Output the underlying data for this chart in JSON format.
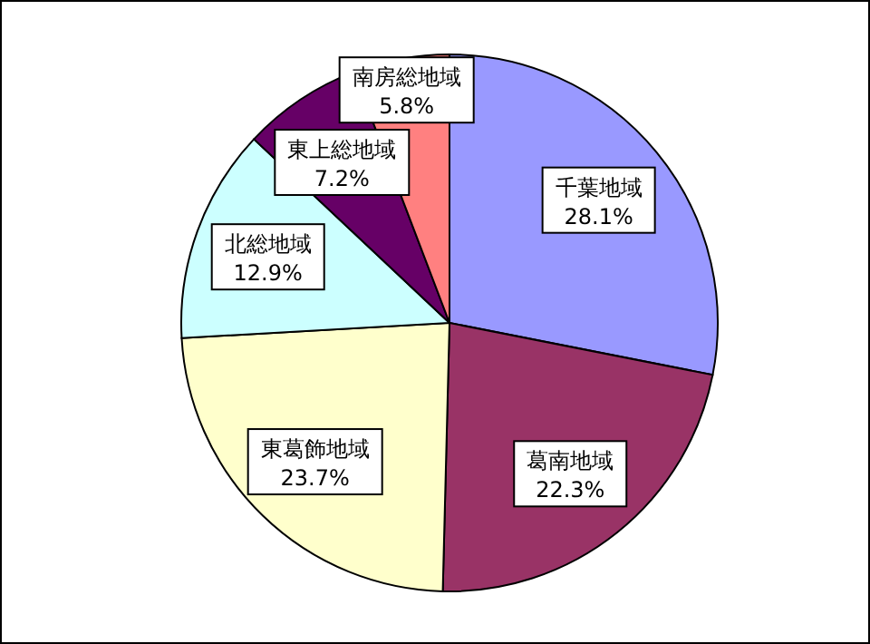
{
  "chart_data": {
    "type": "pie",
    "categories": [
      "千葉地域",
      "葛南地域",
      "東葛飾地域",
      "北総地域",
      "東上総地域",
      "南房総地域"
    ],
    "values": [
      28.1,
      22.3,
      23.7,
      12.9,
      7.2,
      5.8
    ],
    "colors": [
      "#9999ff",
      "#993366",
      "#ffffcc",
      "#ccffff",
      "#660066",
      "#ff8080"
    ],
    "value_labels": [
      "28.1%",
      "22.3%",
      "23.7%",
      "12.9%",
      "7.2%",
      "5.8%"
    ]
  }
}
